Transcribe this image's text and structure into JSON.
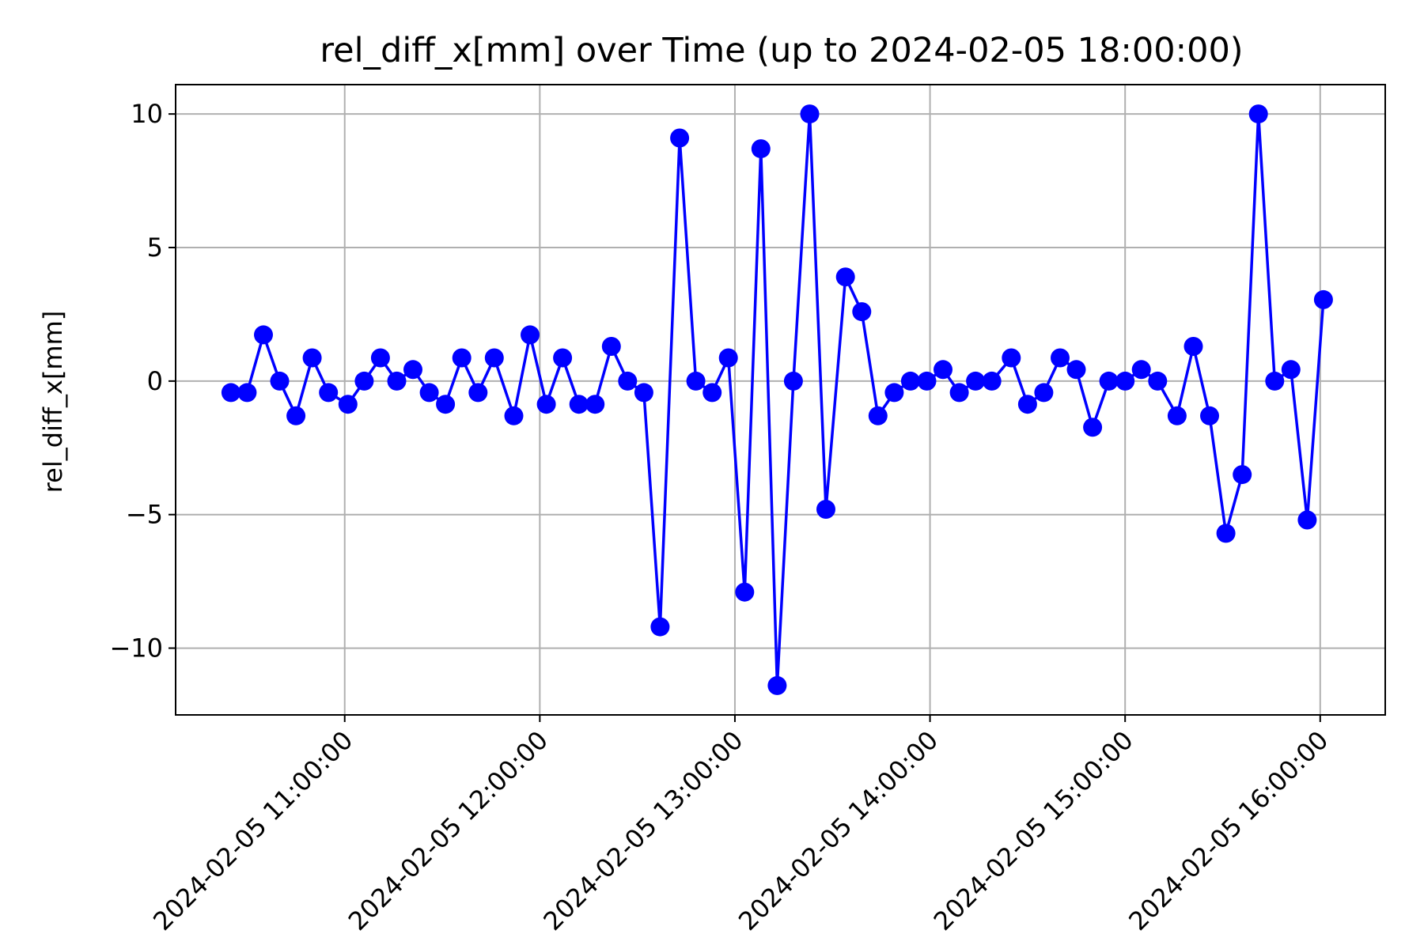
{
  "chart_data": {
    "type": "line",
    "title": "rel_diff_x[mm] over Time (up to 2024-02-05 18:00:00)",
    "xlabel": "",
    "ylabel": "rel_diff_x[mm]",
    "ylim": [
      -12.5,
      11.1
    ],
    "xlim": [
      "2024-02-05 10:08:00",
      "2024-02-05 16:20:00"
    ],
    "grid": true,
    "colors": {
      "line": "#0000ff",
      "marker": "#0000ff",
      "grid": "#b0b0b0",
      "axes": "#000000"
    },
    "x_ticks": [
      {
        "value": "2024-02-05 11:00:00",
        "label": "2024-02-05 11:00:00"
      },
      {
        "value": "2024-02-05 12:00:00",
        "label": "2024-02-05 12:00:00"
      },
      {
        "value": "2024-02-05 13:00:00",
        "label": "2024-02-05 13:00:00"
      },
      {
        "value": "2024-02-05 14:00:00",
        "label": "2024-02-05 14:00:00"
      },
      {
        "value": "2024-02-05 15:00:00",
        "label": "2024-02-05 15:00:00"
      },
      {
        "value": "2024-02-05 16:00:00",
        "label": "2024-02-05 16:00:00"
      }
    ],
    "y_ticks": [
      {
        "value": 10,
        "label": "10"
      },
      {
        "value": 5,
        "label": "5"
      },
      {
        "value": 0,
        "label": "0"
      },
      {
        "value": -5,
        "label": "−5"
      },
      {
        "value": -10,
        "label": "−10"
      }
    ],
    "series": [
      {
        "x": [
          "2024-02-05 10:25:00",
          "2024-02-05 10:30:00",
          "2024-02-05 10:35:00",
          "2024-02-05 10:40:00",
          "2024-02-05 10:45:00",
          "2024-02-05 10:50:00",
          "2024-02-05 10:55:00",
          "2024-02-05 11:01:00",
          "2024-02-05 11:06:00",
          "2024-02-05 11:11:00",
          "2024-02-05 11:16:00",
          "2024-02-05 11:21:00",
          "2024-02-05 11:26:00",
          "2024-02-05 11:31:00",
          "2024-02-05 11:36:00",
          "2024-02-05 11:41:00",
          "2024-02-05 11:46:00",
          "2024-02-05 11:52:00",
          "2024-02-05 11:57:00",
          "2024-02-05 12:02:00",
          "2024-02-05 12:07:00",
          "2024-02-05 12:12:00",
          "2024-02-05 12:17:00",
          "2024-02-05 12:22:00",
          "2024-02-05 12:27:00",
          "2024-02-05 12:32:00",
          "2024-02-05 12:37:00",
          "2024-02-05 12:43:00",
          "2024-02-05 12:48:00",
          "2024-02-05 12:53:00",
          "2024-02-05 12:58:00",
          "2024-02-05 13:03:00",
          "2024-02-05 13:08:00",
          "2024-02-05 13:13:00",
          "2024-02-05 13:18:00",
          "2024-02-05 13:23:00",
          "2024-02-05 13:28:00",
          "2024-02-05 13:34:00",
          "2024-02-05 13:39:00",
          "2024-02-05 13:44:00",
          "2024-02-05 13:49:00",
          "2024-02-05 13:54:00",
          "2024-02-05 13:59:00",
          "2024-02-05 14:04:00",
          "2024-02-05 14:09:00",
          "2024-02-05 14:14:00",
          "2024-02-05 14:19:00",
          "2024-02-05 14:25:00",
          "2024-02-05 14:30:00",
          "2024-02-05 14:35:00",
          "2024-02-05 14:40:00",
          "2024-02-05 14:45:00",
          "2024-02-05 14:50:00",
          "2024-02-05 14:55:00",
          "2024-02-05 15:00:00",
          "2024-02-05 15:05:00",
          "2024-02-05 15:10:00",
          "2024-02-05 15:16:00",
          "2024-02-05 15:21:00",
          "2024-02-05 15:26:00",
          "2024-02-05 15:31:00",
          "2024-02-05 15:36:00",
          "2024-02-05 15:41:00",
          "2024-02-05 15:46:00",
          "2024-02-05 15:51:00",
          "2024-02-05 15:56:00",
          "2024-02-05 16:01:00"
        ],
        "y": [
          -0.43,
          -0.43,
          1.73,
          0.0,
          -1.3,
          0.87,
          -0.43,
          -0.87,
          0.0,
          0.87,
          0.0,
          0.43,
          -0.43,
          -0.87,
          0.87,
          -0.43,
          0.87,
          -1.3,
          1.73,
          -0.87,
          0.87,
          -0.87,
          -0.87,
          1.3,
          0.0,
          -0.43,
          -9.2,
          9.1,
          0.0,
          -0.43,
          0.87,
          -7.9,
          8.7,
          -11.4,
          0.0,
          10.0,
          -4.8,
          3.9,
          2.6,
          -1.3,
          -0.43,
          0.0,
          0.0,
          0.43,
          -0.43,
          0.0,
          0.0,
          0.87,
          -0.87,
          -0.43,
          0.87,
          0.43,
          -1.73,
          0.0,
          0.0,
          0.43,
          0.0,
          -1.3,
          1.3,
          -1.3,
          -5.7,
          -3.5,
          10.0,
          0.0,
          0.43,
          -5.2,
          3.05
        ]
      }
    ]
  }
}
